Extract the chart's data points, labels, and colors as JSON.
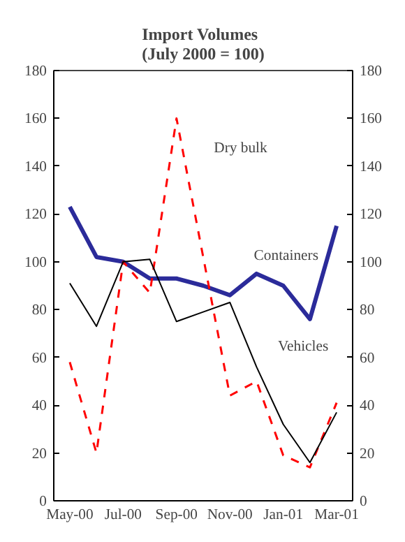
{
  "chart_data": {
    "type": "line",
    "title": "Import Volumes",
    "subtitle": "(July 2000 = 100)",
    "categories": [
      "May-00",
      null,
      "Jul-00",
      null,
      "Sep-00",
      null,
      "Nov-00",
      null,
      "Jan-01",
      null,
      "Mar-01"
    ],
    "series": [
      {
        "name": "Containers",
        "color": "#2b2b9a",
        "values": [
          123,
          102,
          100,
          93,
          93,
          90,
          86,
          95,
          90,
          76,
          115
        ]
      },
      {
        "name": "Dry bulk",
        "color": "#ff0000",
        "line_style": "dashed",
        "values": [
          58,
          20,
          100,
          87,
          160,
          102,
          44,
          50,
          19,
          14,
          41
        ]
      },
      {
        "name": "Vehicles",
        "color": "#000000",
        "values": [
          91,
          73,
          100,
          101,
          75,
          79,
          83,
          56,
          32,
          16,
          37
        ]
      }
    ],
    "ylim": [
      0,
      180
    ],
    "yticks": [
      0,
      20,
      40,
      60,
      80,
      100,
      120,
      140,
      160,
      180
    ],
    "y2lim": [
      0,
      180
    ],
    "y2ticks": [
      0,
      20,
      40,
      60,
      80,
      100,
      120,
      140,
      160,
      180
    ],
    "grid": false
  }
}
